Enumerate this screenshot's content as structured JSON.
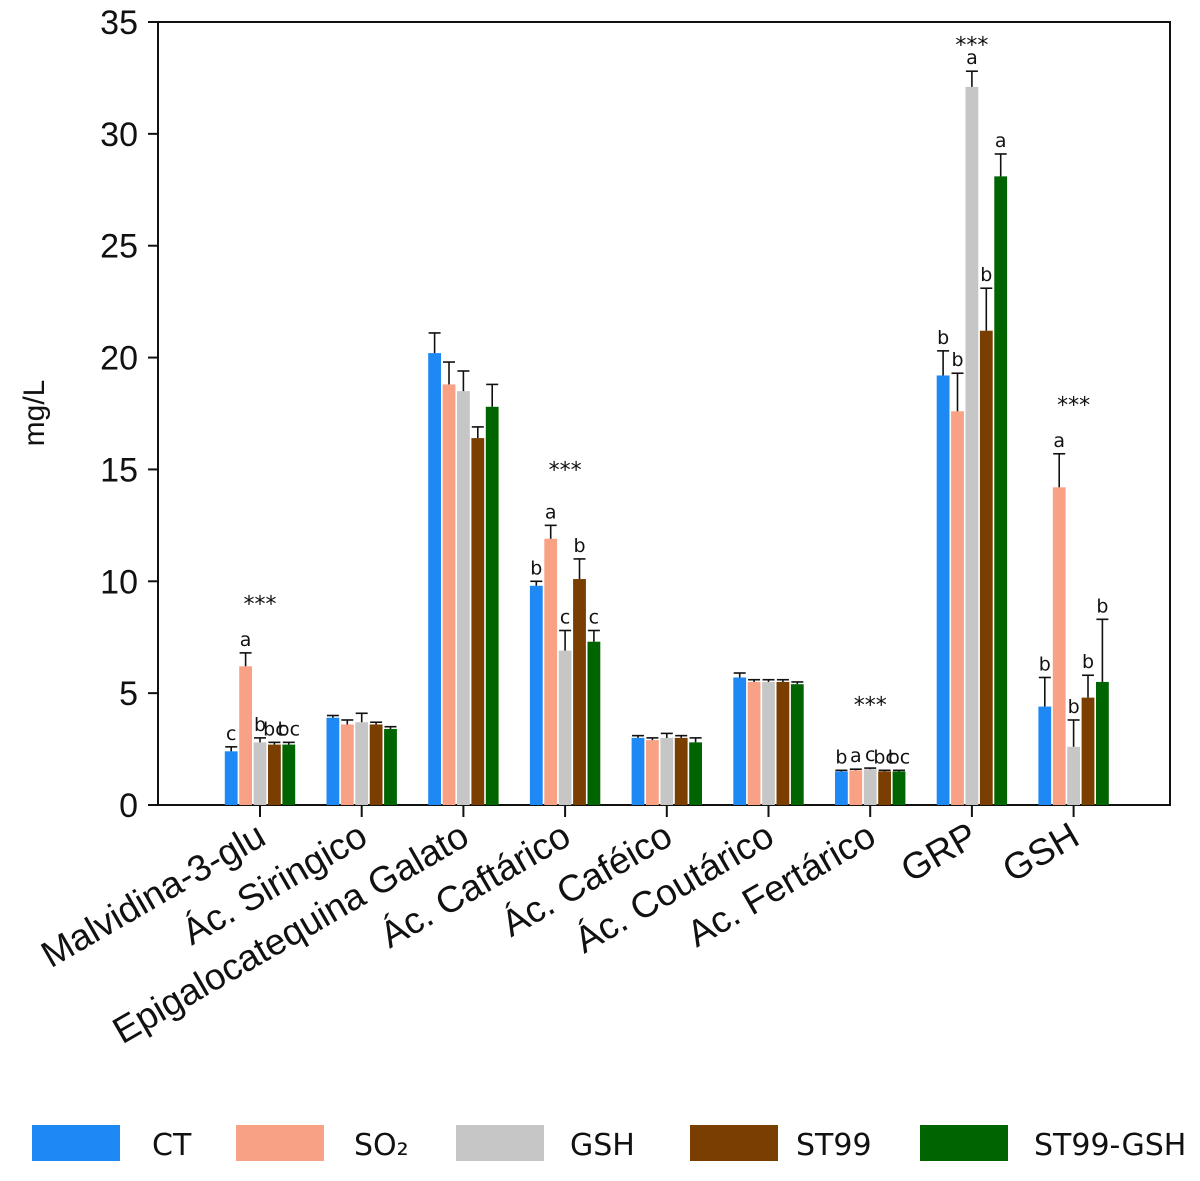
{
  "chart_data": {
    "type": "bar",
    "ylabel": "mg/L",
    "ylim": [
      0,
      35
    ],
    "yticks": [
      0,
      5,
      10,
      15,
      20,
      25,
      30,
      35
    ],
    "categories": [
      "Malvidina-3-glu",
      "Ác. Siringico",
      "Epigalocatequina Galato",
      "Ác. Caftárico",
      "Ác. Caféico",
      "Ác. Coutárico",
      "Ac. Fertárico",
      "GRP",
      "GSH"
    ],
    "series": [
      {
        "name": "CT",
        "color": "#1e88f5",
        "values": [
          2.4,
          3.9,
          20.2,
          9.8,
          3.0,
          5.7,
          1.5,
          19.2,
          4.4
        ],
        "errors": [
          0.2,
          0.1,
          0.9,
          0.2,
          0.1,
          0.2,
          0.05,
          1.1,
          1.3
        ],
        "labels": [
          "c",
          "",
          "",
          "b",
          "",
          "",
          "b",
          "b",
          "b"
        ]
      },
      {
        "name": "SO₂",
        "color": "#f8a185",
        "values": [
          6.2,
          3.6,
          18.8,
          11.9,
          2.9,
          5.5,
          1.55,
          17.6,
          14.2
        ],
        "errors": [
          0.6,
          0.2,
          1.0,
          0.6,
          0.1,
          0.1,
          0.05,
          1.7,
          1.5
        ],
        "labels": [
          "a",
          "",
          "",
          "a",
          "",
          "",
          "a",
          "b",
          "a"
        ]
      },
      {
        "name": "GSH",
        "color": "#c6c6c6",
        "values": [
          2.8,
          3.7,
          18.5,
          6.9,
          3.0,
          5.5,
          1.6,
          32.1,
          2.6
        ],
        "errors": [
          0.2,
          0.4,
          0.9,
          0.9,
          0.2,
          0.1,
          0.05,
          0.7,
          1.2
        ],
        "labels": [
          "b",
          "",
          "",
          "c",
          "",
          "",
          "c",
          "a",
          "b"
        ]
      },
      {
        "name": "ST99",
        "color": "#7a3e00",
        "values": [
          2.7,
          3.6,
          16.4,
          10.1,
          3.0,
          5.5,
          1.5,
          21.2,
          4.8
        ],
        "errors": [
          0.1,
          0.1,
          0.5,
          0.9,
          0.1,
          0.1,
          0.05,
          1.9,
          1.0
        ],
        "labels": [
          "bc",
          "",
          "",
          "b",
          "",
          "",
          "bc",
          "b",
          "b"
        ]
      },
      {
        "name": "ST99-GSH",
        "color": "#006400",
        "values": [
          2.7,
          3.4,
          17.8,
          7.3,
          2.8,
          5.4,
          1.5,
          28.1,
          5.5
        ],
        "errors": [
          0.1,
          0.1,
          1.0,
          0.5,
          0.2,
          0.1,
          0.05,
          1.0,
          2.8
        ],
        "labels": [
          "bc",
          "",
          "",
          "c",
          "",
          "",
          "bc",
          "a",
          "b"
        ]
      }
    ],
    "significance": [
      {
        "category_index": 0,
        "text": "***",
        "y": 9.0
      },
      {
        "category_index": 3,
        "text": "***",
        "y": 15.0
      },
      {
        "category_index": 6,
        "text": "***",
        "y": 4.5
      },
      {
        "category_index": 7,
        "text": "***",
        "y": 34.0
      },
      {
        "category_index": 8,
        "text": "***",
        "y": 17.9
      }
    ],
    "legend": {
      "placement": "bottom",
      "entries": [
        "CT",
        "SO₂",
        "GSH",
        "ST99",
        "ST99-GSH"
      ]
    }
  }
}
